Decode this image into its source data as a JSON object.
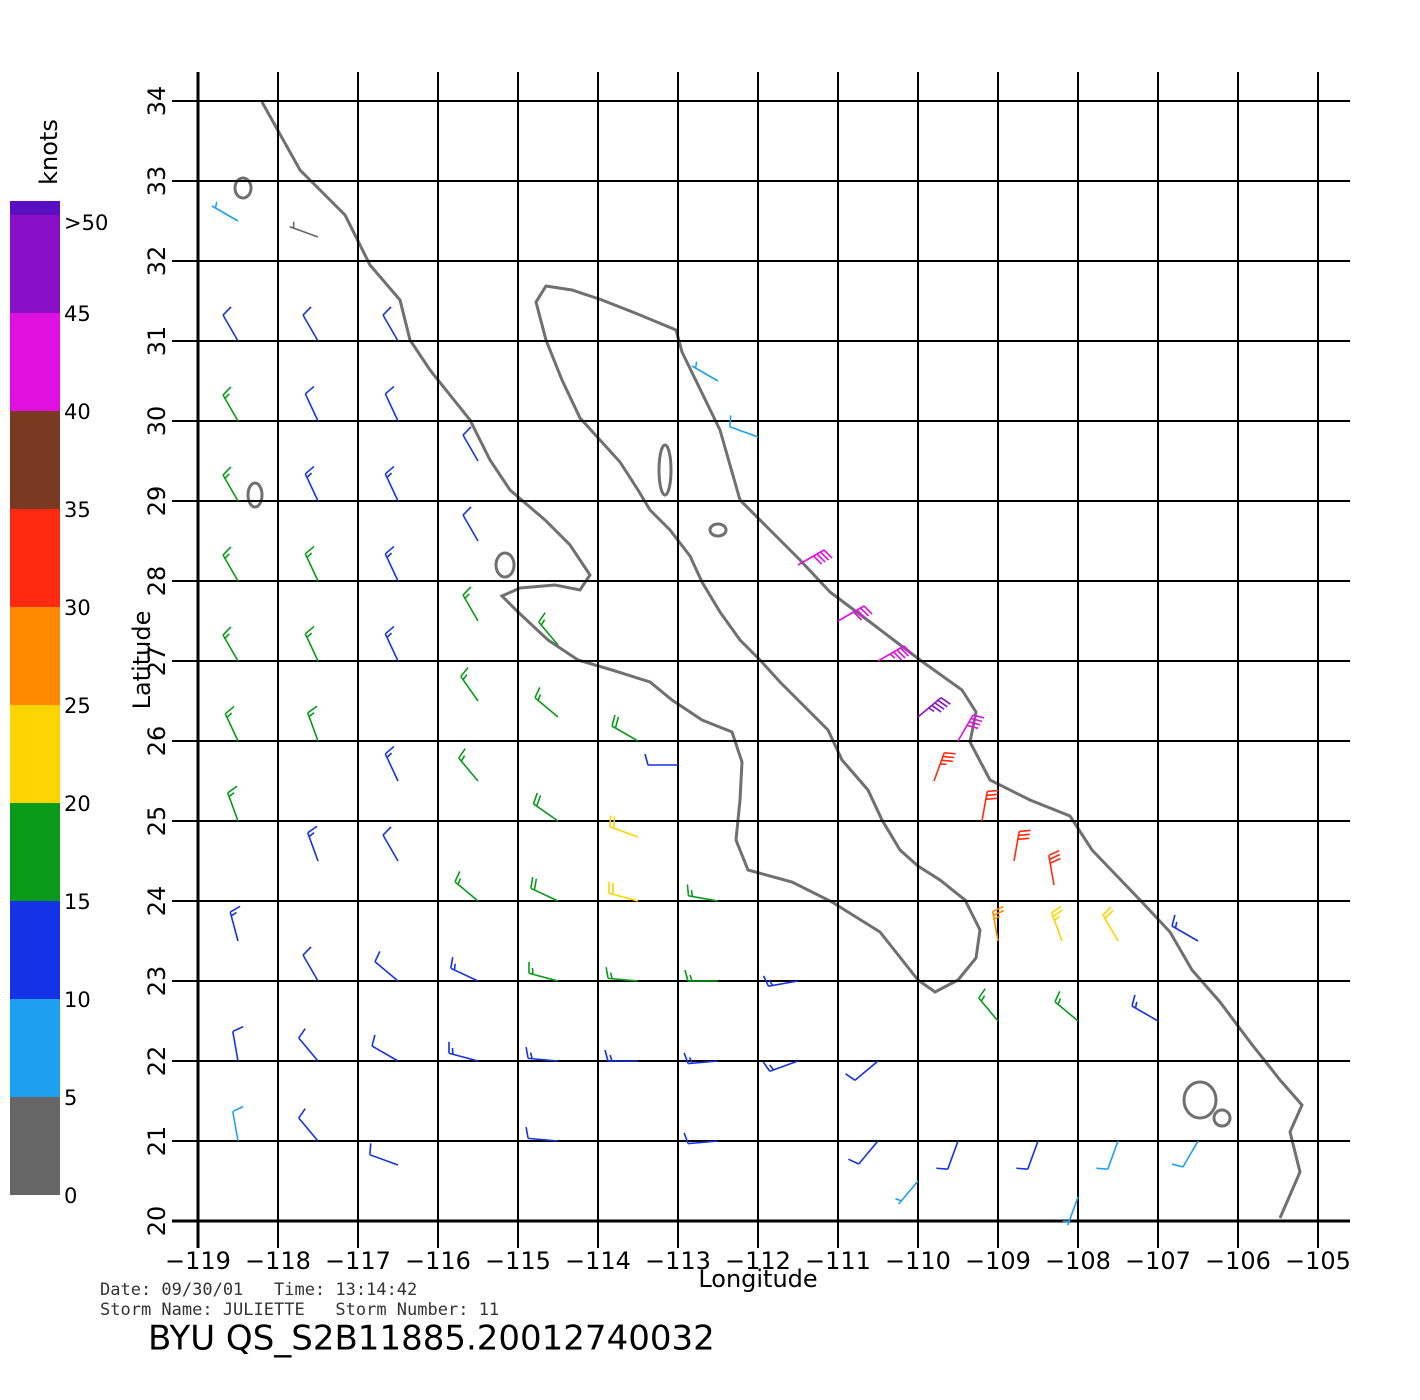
{
  "chart_data": {
    "type": "wind-barb-map",
    "xlabel": "Longitude",
    "ylabel": "Latitude",
    "xlim": [
      -119,
      -105
    ],
    "ylim": [
      20,
      34
    ],
    "xticks": [
      {
        "value": -119,
        "label": "−119"
      },
      {
        "value": -118,
        "label": "−118"
      },
      {
        "value": -117,
        "label": "−117"
      },
      {
        "value": -116,
        "label": "−116"
      },
      {
        "value": -115,
        "label": "−115"
      },
      {
        "value": -114,
        "label": "−114"
      },
      {
        "value": -113,
        "label": "−113"
      },
      {
        "value": -112,
        "label": "−112"
      },
      {
        "value": -111,
        "label": "−111"
      },
      {
        "value": -110,
        "label": "−110"
      },
      {
        "value": -109,
        "label": "−109"
      },
      {
        "value": -108,
        "label": "−108"
      },
      {
        "value": -107,
        "label": "−107"
      },
      {
        "value": -106,
        "label": "−106"
      },
      {
        "value": -105,
        "label": "−105"
      }
    ],
    "yticks": [
      20,
      21,
      22,
      23,
      24,
      25,
      26,
      27,
      28,
      29,
      30,
      31,
      32,
      33,
      34
    ],
    "grid": true,
    "colorbar": {
      "title": "knots",
      "ticks": [
        0,
        5,
        10,
        15,
        20,
        25,
        30,
        35,
        40,
        45,
        {
          "value": 50,
          "label": ">50"
        }
      ],
      "colors": [
        "#666666",
        "#1ea0f0",
        "#1432e6",
        "#0a9a1a",
        "#ffd400",
        "#ff8a00",
        "#ff2a10",
        "#7a3a22",
        "#e010e0",
        "#8a10c8",
        "#5a10c0"
      ]
    },
    "barbs": [
      {
        "lon": -118.5,
        "lat": 32.5,
        "speed": 6,
        "dir": 300
      },
      {
        "lon": -117.5,
        "lat": 32.3,
        "speed": 4,
        "dir": 290
      },
      {
        "lon": -118.5,
        "lat": 31,
        "speed": 10,
        "dir": 330
      },
      {
        "lon": -117.5,
        "lat": 31,
        "speed": 11,
        "dir": 330
      },
      {
        "lon": -116.5,
        "lat": 31,
        "speed": 12,
        "dir": 330
      },
      {
        "lon": -118.5,
        "lat": 30,
        "speed": 16,
        "dir": 330
      },
      {
        "lon": -117.5,
        "lat": 30,
        "speed": 12,
        "dir": 335
      },
      {
        "lon": -116.5,
        "lat": 30,
        "speed": 12,
        "dir": 335
      },
      {
        "lon": -115.5,
        "lat": 29.5,
        "speed": 11,
        "dir": 330
      },
      {
        "lon": -118.5,
        "lat": 29,
        "speed": 17,
        "dir": 330
      },
      {
        "lon": -117.5,
        "lat": 29,
        "speed": 14,
        "dir": 335
      },
      {
        "lon": -116.5,
        "lat": 29,
        "speed": 13,
        "dir": 335
      },
      {
        "lon": -115.5,
        "lat": 28.5,
        "speed": 12,
        "dir": 330
      },
      {
        "lon": -118.5,
        "lat": 28,
        "speed": 17,
        "dir": 330
      },
      {
        "lon": -117.5,
        "lat": 28,
        "speed": 15,
        "dir": 335
      },
      {
        "lon": -116.5,
        "lat": 28,
        "speed": 13,
        "dir": 335
      },
      {
        "lon": -115.5,
        "lat": 27.5,
        "speed": 15,
        "dir": 330
      },
      {
        "lon": -114.5,
        "lat": 27.2,
        "speed": 16,
        "dir": 320
      },
      {
        "lon": -118.5,
        "lat": 27,
        "speed": 17,
        "dir": 330
      },
      {
        "lon": -117.5,
        "lat": 27,
        "speed": 16,
        "dir": 335
      },
      {
        "lon": -116.5,
        "lat": 27,
        "speed": 13,
        "dir": 335
      },
      {
        "lon": -115.5,
        "lat": 26.5,
        "speed": 15,
        "dir": 325
      },
      {
        "lon": -114.5,
        "lat": 26.3,
        "speed": 17,
        "dir": 310
      },
      {
        "lon": -113.5,
        "lat": 26,
        "speed": 19,
        "dir": 300
      },
      {
        "lon": -118.5,
        "lat": 26,
        "speed": 17,
        "dir": 335
      },
      {
        "lon": -117.5,
        "lat": 26,
        "speed": 15,
        "dir": 340
      },
      {
        "lon": -116.5,
        "lat": 25.5,
        "speed": 13,
        "dir": 335
      },
      {
        "lon": -115.5,
        "lat": 25.5,
        "speed": 15,
        "dir": 320
      },
      {
        "lon": -114.5,
        "lat": 25,
        "speed": 18,
        "dir": 305
      },
      {
        "lon": -113.5,
        "lat": 24.8,
        "speed": 20,
        "dir": 290
      },
      {
        "lon": -118.5,
        "lat": 25,
        "speed": 16,
        "dir": 340
      },
      {
        "lon": -117.5,
        "lat": 24.5,
        "speed": 13,
        "dir": 340
      },
      {
        "lon": -116.5,
        "lat": 24.5,
        "speed": 12,
        "dir": 330
      },
      {
        "lon": -115.5,
        "lat": 24,
        "speed": 16,
        "dir": 310
      },
      {
        "lon": -114.5,
        "lat": 24,
        "speed": 18,
        "dir": 295
      },
      {
        "lon": -113.5,
        "lat": 24,
        "speed": 21,
        "dir": 285
      },
      {
        "lon": -112.5,
        "lat": 24,
        "speed": 17,
        "dir": 280
      },
      {
        "lon": -118.5,
        "lat": 23.5,
        "speed": 13,
        "dir": 345
      },
      {
        "lon": -117.5,
        "lat": 23,
        "speed": 11,
        "dir": 330
      },
      {
        "lon": -116.5,
        "lat": 23,
        "speed": 12,
        "dir": 310
      },
      {
        "lon": -115.5,
        "lat": 23,
        "speed": 14,
        "dir": 295
      },
      {
        "lon": -114.5,
        "lat": 23,
        "speed": 16,
        "dir": 285
      },
      {
        "lon": -113.5,
        "lat": 23,
        "speed": 16,
        "dir": 275
      },
      {
        "lon": -112.5,
        "lat": 23,
        "speed": 16,
        "dir": 270
      },
      {
        "lon": -111.5,
        "lat": 23,
        "speed": 14,
        "dir": 260
      },
      {
        "lon": -118.5,
        "lat": 22,
        "speed": 11,
        "dir": 350
      },
      {
        "lon": -117.5,
        "lat": 22,
        "speed": 12,
        "dir": 320
      },
      {
        "lon": -116.5,
        "lat": 22,
        "speed": 12,
        "dir": 300
      },
      {
        "lon": -115.5,
        "lat": 22,
        "speed": 13,
        "dir": 285
      },
      {
        "lon": -114.5,
        "lat": 22,
        "speed": 13,
        "dir": 275
      },
      {
        "lon": -113.5,
        "lat": 22,
        "speed": 14,
        "dir": 270
      },
      {
        "lon": -112.5,
        "lat": 22,
        "speed": 14,
        "dir": 265
      },
      {
        "lon": -111.5,
        "lat": 22,
        "speed": 13,
        "dir": 250
      },
      {
        "lon": -110.5,
        "lat": 22,
        "speed": 12,
        "dir": 230
      },
      {
        "lon": -118.5,
        "lat": 21,
        "speed": 8,
        "dir": 350
      },
      {
        "lon": -117.5,
        "lat": 21,
        "speed": 10,
        "dir": 320
      },
      {
        "lon": -116.5,
        "lat": 20.7,
        "speed": 10,
        "dir": 290
      },
      {
        "lon": -114.5,
        "lat": 21,
        "speed": 11,
        "dir": 275
      },
      {
        "lon": -112.5,
        "lat": 21,
        "speed": 12,
        "dir": 265
      },
      {
        "lon": -110.5,
        "lat": 21,
        "speed": 10,
        "dir": 220
      },
      {
        "lon": -109.5,
        "lat": 21,
        "speed": 10,
        "dir": 200
      },
      {
        "lon": -108.5,
        "lat": 21,
        "speed": 10,
        "dir": 200
      },
      {
        "lon": -107.5,
        "lat": 21,
        "speed": 9,
        "dir": 200
      },
      {
        "lon": -106.5,
        "lat": 21,
        "speed": 9,
        "dir": 210
      },
      {
        "lon": -110,
        "lat": 20.5,
        "speed": 7,
        "dir": 220
      },
      {
        "lon": -108,
        "lat": 20.3,
        "speed": 7,
        "dir": 200
      },
      {
        "lon": -111.5,
        "lat": 28.2,
        "speed": 42,
        "dir": 60
      },
      {
        "lon": -111,
        "lat": 27.5,
        "speed": 40,
        "dir": 60
      },
      {
        "lon": -110.5,
        "lat": 27,
        "speed": 44,
        "dir": 60
      },
      {
        "lon": -110,
        "lat": 26.3,
        "speed": 45,
        "dir": 50
      },
      {
        "lon": -109.5,
        "lat": 26,
        "speed": 42,
        "dir": 30
      },
      {
        "lon": -109.8,
        "lat": 25.5,
        "speed": 33,
        "dir": 20
      },
      {
        "lon": -109.2,
        "lat": 25,
        "speed": 32,
        "dir": 10
      },
      {
        "lon": -108.8,
        "lat": 24.5,
        "speed": 30,
        "dir": 10
      },
      {
        "lon": -108.3,
        "lat": 24.2,
        "speed": 32,
        "dir": 350
      },
      {
        "lon": -109,
        "lat": 23.5,
        "speed": 26,
        "dir": 350
      },
      {
        "lon": -108.2,
        "lat": 23.5,
        "speed": 23,
        "dir": 340
      },
      {
        "lon": -107.5,
        "lat": 23.5,
        "speed": 20,
        "dir": 330
      },
      {
        "lon": -109,
        "lat": 22.5,
        "speed": 17,
        "dir": 320
      },
      {
        "lon": -108,
        "lat": 22.5,
        "speed": 15,
        "dir": 310
      },
      {
        "lon": -107,
        "lat": 22.5,
        "speed": 13,
        "dir": 300
      },
      {
        "lon": -106.5,
        "lat": 23.5,
        "speed": 14,
        "dir": 300
      },
      {
        "lon": -112.5,
        "lat": 30.5,
        "speed": 7,
        "dir": 300
      },
      {
        "lon": -112,
        "lat": 29.8,
        "speed": 8,
        "dir": 290
      },
      {
        "lon": -113,
        "lat": 25.7,
        "speed": 12,
        "dir": 270
      }
    ]
  },
  "footer": {
    "date_line": "Date: 09/30/01   Time: 13:14:42",
    "storm_line": "Storm Name: JULIETTE   Storm Number: 11",
    "file_id": "BYU  QS_S2B11885.20012740032"
  }
}
